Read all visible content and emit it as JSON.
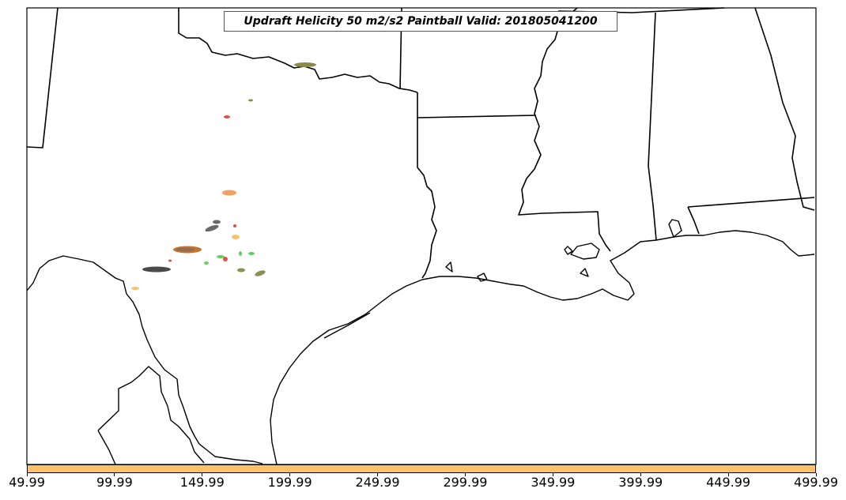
{
  "title": "Updraft Helicity 50 m2/s2 Paintball Valid: 201805041200",
  "colorbar": {
    "color": "#ffc266",
    "ticks": [
      "49.99",
      "99.99",
      "149.99",
      "199.99",
      "249.99",
      "299.99",
      "349.99",
      "399.99",
      "449.99",
      "499.99"
    ]
  },
  "paintball_colors": {
    "olive": "#8a8a4a",
    "red": "#e0504a",
    "orange": "#f4a060",
    "gray": "#6a6a6a",
    "dark_gray": "#4a4a4a",
    "brown": "#c8742e",
    "light_orange": "#f8c070",
    "green": "#60d060",
    "olive_green": "#8c9050"
  }
}
